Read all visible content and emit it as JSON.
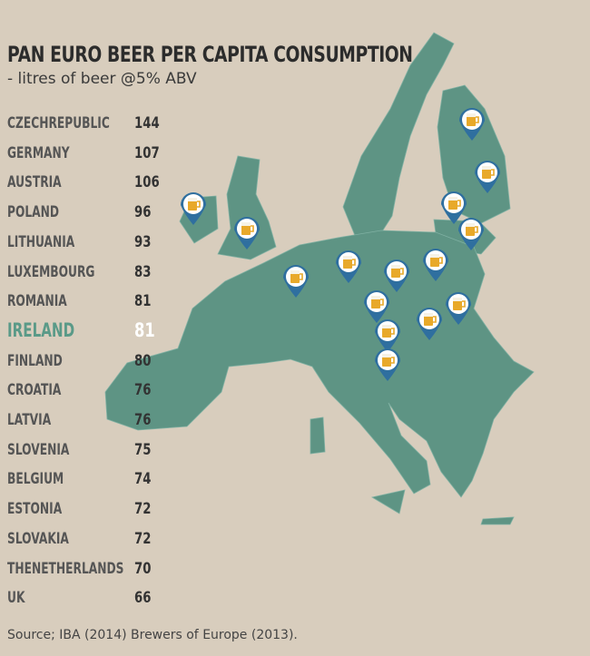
{
  "header": {
    "title": "PAN EURO BEER PER CAPITA CONSUMPTION",
    "subtitle": "- litres of beer @5% ABV"
  },
  "list": {
    "rows": [
      {
        "name": "CZECHREPUBLIC",
        "value": 144
      },
      {
        "name": "GERMANY",
        "value": 107
      },
      {
        "name": "AUSTRIA",
        "value": 106
      },
      {
        "name": "POLAND",
        "value": 96
      },
      {
        "name": "LITHUANIA",
        "value": 93
      },
      {
        "name": "LUXEMBOURG",
        "value": 83
      },
      {
        "name": "ROMANIA",
        "value": 81
      },
      {
        "name": "IRELAND",
        "value": 81,
        "highlight": true
      },
      {
        "name": "FINLAND",
        "value": 80
      },
      {
        "name": "CROATIA",
        "value": 76
      },
      {
        "name": "LATVIA",
        "value": 76
      },
      {
        "name": "SLOVENIA",
        "value": 75
      },
      {
        "name": "BELGIUM",
        "value": 74
      },
      {
        "name": "ESTONIA",
        "value": 72
      },
      {
        "name": "SLOVAKIA",
        "value": 72
      },
      {
        "name": "THENETHERLANDS",
        "value": 70
      },
      {
        "name": "UK",
        "value": 66
      }
    ]
  },
  "footer": {
    "source": "Source; IBA (2014) Brewers of Europe (2013)."
  }
}
